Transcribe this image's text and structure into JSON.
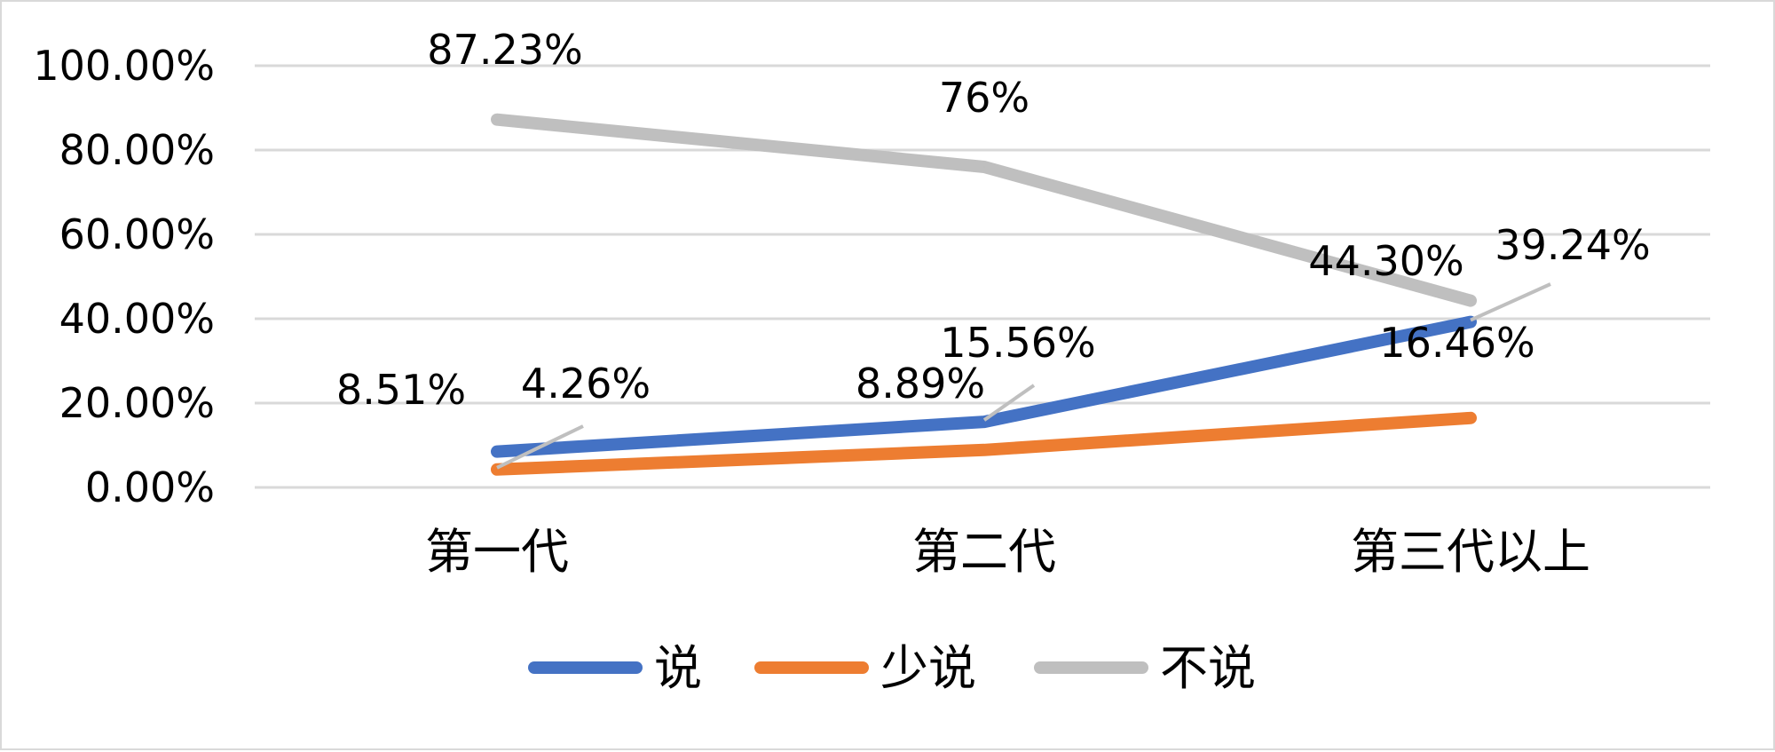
{
  "chart_data": {
    "type": "line",
    "categories": [
      "第一代",
      "第二代",
      "第三代以上"
    ],
    "series": [
      {
        "name": "说",
        "values": [
          8.51,
          15.56,
          39.24
        ],
        "labels": [
          "8.51%",
          "15.56%",
          "39.24%"
        ],
        "color": "#4472C4"
      },
      {
        "name": "少说",
        "values": [
          4.26,
          8.89,
          16.46
        ],
        "labels": [
          "4.26%",
          "8.89%",
          "16.46%"
        ],
        "color": "#ED7D31"
      },
      {
        "name": "不说",
        "values": [
          87.23,
          76,
          44.3
        ],
        "labels": [
          "87.23%",
          "76%",
          "44.30%"
        ],
        "color": "#BFBFBF"
      }
    ],
    "y_ticks": [
      "0.00%",
      "20.00%",
      "40.00%",
      "60.00%",
      "80.00%",
      "100.00%"
    ],
    "ylim": [
      0,
      100
    ],
    "grid": true,
    "legend_position": "bottom",
    "title": "",
    "xlabel": "",
    "ylabel": ""
  }
}
